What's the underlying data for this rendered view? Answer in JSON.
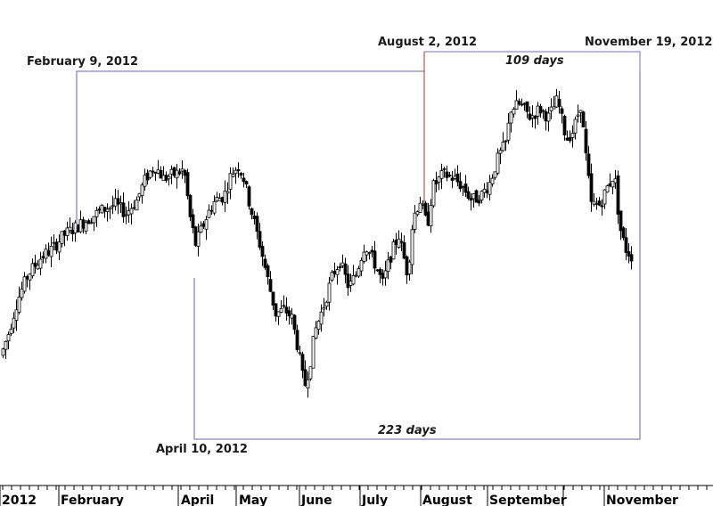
{
  "chart_data": {
    "type": "candlestick",
    "title": "",
    "xlabel": "",
    "ylabel": "",
    "grid": false,
    "x_axis": {
      "labels": [
        "2012",
        "February",
        "April",
        "May",
        "June",
        "July",
        "August",
        "September",
        "November"
      ]
    },
    "annotations": {
      "dates": [
        {
          "id": "feb9",
          "text": "February 9, 2012"
        },
        {
          "id": "apr10",
          "text": "April 10, 2012"
        },
        {
          "id": "aug2",
          "text": "August 2, 2012"
        },
        {
          "id": "nov19",
          "text": "November 19, 2012"
        }
      ],
      "durations": [
        {
          "id": "d223",
          "text": "223 days",
          "from": "April 10, 2012",
          "to": "November 19, 2012"
        },
        {
          "id": "d109",
          "text": "109 days",
          "from": "August 2, 2012",
          "to": "November 19, 2012"
        }
      ]
    },
    "colors": {
      "up_candle": "#ffffff",
      "down_candle": "#000000",
      "bracket_long": "#6b63a8",
      "bracket_short": "#7a72b8",
      "marker_aug2": "#b03030"
    },
    "anchors": [
      [
        0,
        1.15
      ],
      [
        8,
        1.25
      ],
      [
        18,
        1.4
      ],
      [
        30,
        1.52
      ],
      [
        45,
        1.6
      ],
      [
        58,
        1.64
      ],
      [
        70,
        1.7
      ],
      [
        85,
        1.74
      ],
      [
        100,
        1.78
      ],
      [
        115,
        1.82
      ],
      [
        128,
        1.84
      ],
      [
        140,
        1.8
      ],
      [
        152,
        1.86
      ],
      [
        162,
        1.96
      ],
      [
        172,
        2.02
      ],
      [
        182,
        1.96
      ],
      [
        195,
        1.98
      ],
      [
        205,
        2.0
      ],
      [
        212,
        1.78
      ],
      [
        218,
        1.66
      ],
      [
        224,
        1.72
      ],
      [
        232,
        1.8
      ],
      [
        240,
        1.86
      ],
      [
        250,
        1.88
      ],
      [
        258,
        1.98
      ],
      [
        266,
        2.02
      ],
      [
        272,
        1.96
      ],
      [
        280,
        1.82
      ],
      [
        290,
        1.66
      ],
      [
        300,
        1.48
      ],
      [
        308,
        1.34
      ],
      [
        318,
        1.36
      ],
      [
        326,
        1.32
      ],
      [
        334,
        1.16
      ],
      [
        340,
        1.0
      ],
      [
        346,
        1.1
      ],
      [
        352,
        1.26
      ],
      [
        362,
        1.38
      ],
      [
        372,
        1.52
      ],
      [
        380,
        1.58
      ],
      [
        390,
        1.46
      ],
      [
        398,
        1.52
      ],
      [
        408,
        1.66
      ],
      [
        418,
        1.58
      ],
      [
        428,
        1.48
      ],
      [
        438,
        1.62
      ],
      [
        446,
        1.7
      ],
      [
        456,
        1.52
      ],
      [
        462,
        1.78
      ],
      [
        470,
        1.86
      ],
      [
        478,
        1.74
      ],
      [
        484,
        1.92
      ],
      [
        496,
        1.98
      ],
      [
        508,
        1.96
      ],
      [
        518,
        1.92
      ],
      [
        528,
        1.86
      ],
      [
        538,
        1.88
      ],
      [
        548,
        1.94
      ],
      [
        558,
        2.06
      ],
      [
        566,
        2.12
      ],
      [
        572,
        2.28
      ],
      [
        582,
        2.3
      ],
      [
        594,
        2.24
      ],
      [
        604,
        2.28
      ],
      [
        614,
        2.24
      ],
      [
        624,
        2.32
      ],
      [
        634,
        2.14
      ],
      [
        642,
        2.18
      ],
      [
        650,
        2.3
      ],
      [
        656,
        2.06
      ],
      [
        662,
        1.84
      ],
      [
        672,
        1.84
      ],
      [
        680,
        1.92
      ],
      [
        688,
        1.98
      ],
      [
        694,
        1.74
      ],
      [
        700,
        1.64
      ],
      [
        708,
        1.6
      ]
    ]
  }
}
